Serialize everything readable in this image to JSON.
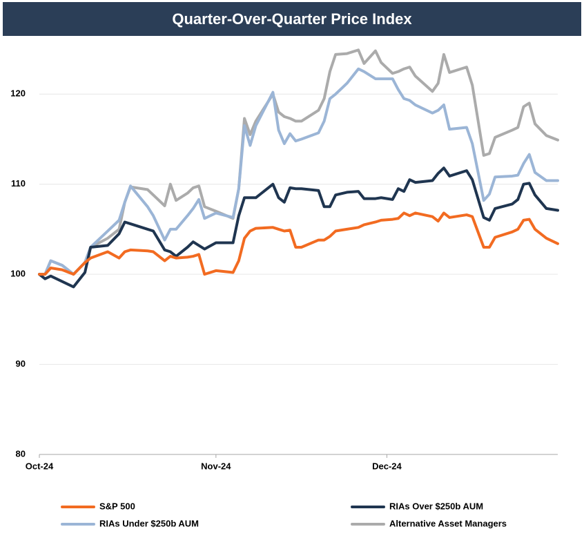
{
  "chart_data": {
    "type": "line",
    "title": "Quarter-Over-Quarter Price Index",
    "x": [
      0,
      1,
      2,
      4,
      6,
      8,
      9,
      12,
      14,
      15,
      16,
      19,
      20,
      22,
      23,
      24,
      26,
      27,
      28,
      29,
      31,
      34,
      35,
      36,
      37,
      38,
      41,
      42,
      43,
      44,
      45,
      46,
      49,
      50,
      51,
      52,
      54,
      56,
      57,
      59,
      60,
      62,
      63,
      64,
      65,
      66,
      69,
      70,
      71,
      72,
      75,
      76,
      78,
      79,
      80,
      83,
      84,
      85,
      86,
      87,
      89,
      91
    ],
    "xlim": [
      0,
      91
    ],
    "xticks": [
      {
        "value": 0,
        "label": "Oct-24"
      },
      {
        "value": 31,
        "label": "Nov-24"
      },
      {
        "value": 61,
        "label": "Dec-24"
      }
    ],
    "ylim": [
      80,
      126
    ],
    "yticks": [
      80,
      90,
      100,
      110,
      120
    ],
    "grid": true,
    "legend": "bottom",
    "series": [
      {
        "name": "S&P 500",
        "color": "#f26b21",
        "values": [
          100,
          100,
          100.7,
          100.5,
          100,
          101.3,
          101.8,
          102.5,
          101.8,
          102.5,
          102.7,
          102.6,
          102.5,
          101.5,
          102,
          101.8,
          101.9,
          102,
          102.2,
          100,
          100.4,
          100.2,
          101.5,
          104,
          104.8,
          105.1,
          105.2,
          105,
          104.8,
          104.9,
          103,
          103,
          103.8,
          103.8,
          104.2,
          104.8,
          105,
          105.2,
          105.5,
          105.8,
          106,
          106.1,
          106.2,
          106.8,
          106.5,
          106.8,
          106.4,
          105.9,
          106.8,
          106.3,
          106.6,
          106.4,
          103,
          103,
          104.1,
          104.7,
          105,
          106,
          106.1,
          105,
          104,
          103.4
        ]
      },
      {
        "name": "RIAs Over $250b AUM",
        "color": "#1f3550",
        "values": [
          100,
          99.5,
          99.8,
          99.2,
          98.6,
          100.2,
          103,
          103.2,
          104.5,
          105.8,
          105.6,
          105,
          104.8,
          102.7,
          102.5,
          102,
          103,
          103.6,
          103.2,
          102.8,
          103.5,
          103.5,
          106.5,
          108.5,
          108.5,
          108.5,
          110,
          108.5,
          108,
          109.6,
          109.5,
          109.5,
          109.3,
          107.5,
          107.5,
          108.8,
          109.1,
          109.2,
          108.4,
          108.4,
          108.5,
          108.3,
          109.5,
          109.2,
          110.5,
          110.2,
          110.4,
          111.2,
          111.8,
          110.9,
          111.5,
          110.5,
          106.3,
          106,
          107.3,
          107.8,
          108.3,
          110,
          110.1,
          108.8,
          107.3,
          107.1
        ]
      },
      {
        "name": "RIAs Under $250b AUM",
        "color": "#9bb5d6",
        "values": [
          100,
          100,
          101.5,
          101,
          100,
          101.3,
          103,
          104.8,
          106,
          108,
          109.8,
          107.5,
          106.5,
          103.8,
          105,
          105,
          106.5,
          107.3,
          108.3,
          106.2,
          106.8,
          106.3,
          109.5,
          116.5,
          114.3,
          116.5,
          120.2,
          116,
          114.5,
          115.6,
          114.8,
          115,
          115.7,
          117,
          119.5,
          120,
          121.2,
          122.8,
          122.5,
          121.7,
          121.7,
          121.7,
          120.5,
          119.5,
          119.3,
          118.8,
          117.9,
          118.2,
          118.8,
          116.1,
          116.3,
          114.5,
          108.2,
          108.9,
          110.8,
          110.9,
          111,
          112.3,
          113.3,
          111.3,
          110.4,
          110.4
        ]
      },
      {
        "name": "Alternative Asset Managers",
        "color": "#ababab",
        "values": [
          100,
          100,
          101.5,
          101,
          100,
          101.3,
          103,
          104,
          105,
          108,
          109.7,
          109.4,
          108.8,
          107.6,
          110,
          108.2,
          109,
          109.6,
          109.8,
          107.5,
          107,
          106.2,
          109.5,
          117.3,
          115.5,
          117,
          120,
          118,
          117.5,
          117.3,
          117,
          117,
          118.2,
          119.5,
          122.5,
          124.4,
          124.5,
          124.9,
          123.4,
          124.8,
          123.5,
          122.3,
          122.5,
          122.8,
          123,
          122,
          120.3,
          121.2,
          124.4,
          122.4,
          123,
          121,
          113.2,
          113.4,
          115.2,
          116,
          116.3,
          118.6,
          119,
          116.7,
          115.4,
          114.9
        ]
      }
    ]
  }
}
